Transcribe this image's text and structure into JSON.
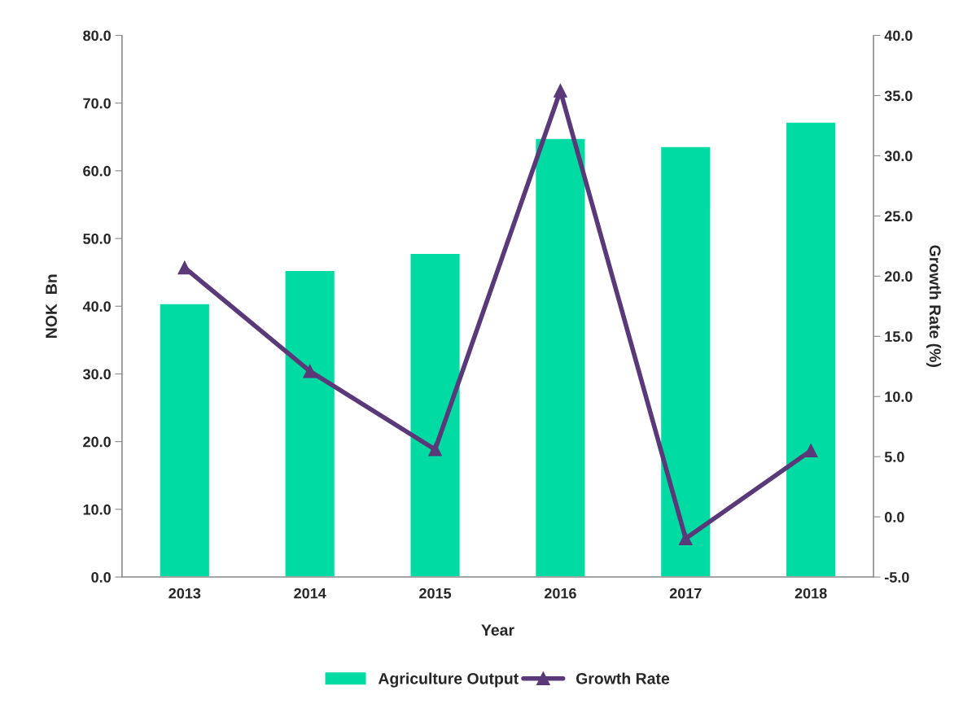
{
  "chart_data": {
    "type": "bar",
    "xlabel": "Year",
    "ylabel": "NOK  Bn",
    "y2label": "Growth Rate (%)",
    "categories": [
      "2013",
      "2014",
      "2015",
      "2016",
      "2017",
      "2018"
    ],
    "series": [
      {
        "name": "Agriculture Output",
        "color": "#00dba4",
        "values": [
          40.4,
          45.3,
          47.8,
          64.8,
          63.6,
          67.2
        ]
      },
      {
        "name": "Growth Rate",
        "type": "line",
        "axis": "y2",
        "color": "#5a3979",
        "marker": "triangle",
        "line_style": "solid",
        "values": [
          20.7,
          12.1,
          5.6,
          35.4,
          -1.8,
          5.5
        ]
      }
    ],
    "ylim": [
      0,
      80
    ],
    "yticks": [
      {
        "value": 0,
        "label": "0.0"
      },
      {
        "value": 10,
        "label": "10.0"
      },
      {
        "value": 20,
        "label": "20.0"
      },
      {
        "value": 30,
        "label": "30.0"
      },
      {
        "value": 40,
        "label": "40.0"
      },
      {
        "value": 50,
        "label": "50.0"
      },
      {
        "value": 60,
        "label": "60.0"
      },
      {
        "value": 70,
        "label": "70.0"
      },
      {
        "value": 80,
        "label": "80.0"
      }
    ],
    "y2lim": [
      -5,
      40
    ],
    "y2ticks": [
      {
        "value": -5,
        "label": "-5.0"
      },
      {
        "value": 0,
        "label": "0.0"
      },
      {
        "value": 5,
        "label": "5.0"
      },
      {
        "value": 10,
        "label": "10.0"
      },
      {
        "value": 15,
        "label": "15.0"
      },
      {
        "value": 20,
        "label": "20.0"
      },
      {
        "value": 25,
        "label": "25.0"
      },
      {
        "value": 30,
        "label": "30.0"
      },
      {
        "value": 35,
        "label": "35.0"
      },
      {
        "value": 40,
        "label": "40.0"
      }
    ],
    "grid": false,
    "legend": "bottom"
  }
}
